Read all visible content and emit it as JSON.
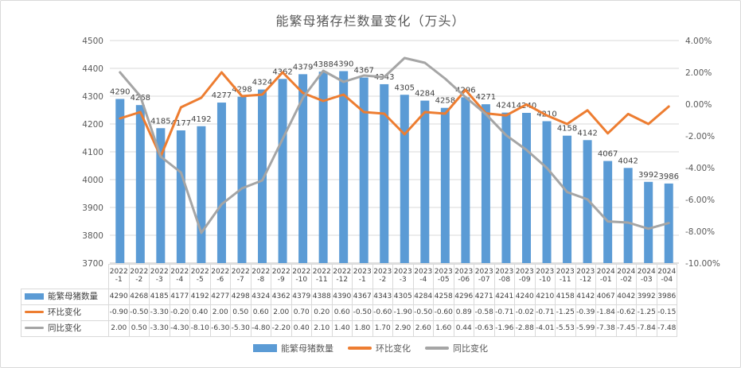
{
  "title": "能繁母猪存栏数量变化（万头）",
  "colors": {
    "bar": "#5B9BD5",
    "mom_line": "#ED7D31",
    "yoy_line": "#A5A5A5",
    "grid": "#D9D9D9",
    "axis_line": "#BFBFBF",
    "axis_text": "#595959",
    "label_text": "#404040",
    "table_border": "#D9D9D9"
  },
  "chart_data": {
    "type": "combo",
    "title": "能繁母猪存栏数量变化（万头）",
    "grid": true,
    "legend_position": "bottom",
    "show_data_table": true,
    "categories": [
      "2022-1",
      "2022-2",
      "2022-3",
      "2022-4",
      "2022-5",
      "2022-6",
      "2022-7",
      "2022-8",
      "2022-9",
      "2022-10",
      "2022-11",
      "2022-12",
      "2023-1",
      "2023-2",
      "2023-3",
      "2023-4",
      "2023-05",
      "2023-06",
      "2023-07",
      "2023-08",
      "2023-09",
      "2023-10",
      "2023-11",
      "2023-12",
      "2024-01",
      "2024-02",
      "2024-03",
      "2024-04"
    ],
    "series": [
      {
        "name": "能繁母猪数量",
        "type": "bar",
        "axis": "left",
        "color": "#5B9BD5",
        "values": [
          "4290",
          "4268",
          "4185",
          "4177",
          "4192",
          "4277",
          "4298",
          "4324",
          "4362",
          "4379",
          "4388",
          "4390",
          "4367",
          "4343",
          "4305",
          "4284",
          "4258",
          "4296",
          "4271",
          "4241",
          "4240",
          "4210",
          "4158",
          "4142",
          "4067",
          "4042",
          "3992",
          "3986"
        ]
      },
      {
        "name": "环比变化",
        "type": "line",
        "axis": "right",
        "color": "#ED7D31",
        "values": [
          "-0.90",
          "-0.50",
          "-3.30",
          "-0.20",
          "0.40",
          "2.00",
          "0.50",
          "0.60",
          "2.00",
          "0.70",
          "0.20",
          "0.60",
          "-0.50",
          "-0.60",
          "-1.90",
          "-0.50",
          "-0.60",
          "0.89",
          "-0.58",
          "-0.71",
          "-0.02",
          "-0.71",
          "-1.25",
          "-0.39",
          "-1.84",
          "-0.62",
          "-1.25",
          "-0.15"
        ]
      },
      {
        "name": "同比变化",
        "type": "line",
        "axis": "right",
        "color": "#A5A5A5",
        "values": [
          "2.00",
          "0.50",
          "-3.30",
          "-4.30",
          "-8.10",
          "-6.30",
          "-5.30",
          "-4.80",
          "-2.20",
          "0.40",
          "2.10",
          "1.40",
          "1.80",
          "1.70",
          "2.90",
          "2.60",
          "1.60",
          "0.44",
          "-0.63",
          "-1.96",
          "-2.88",
          "-4.01",
          "-5.53",
          "-5.99",
          "-7.38",
          "-7.45",
          "-7.84",
          "-7.48"
        ]
      }
    ],
    "left_axis": {
      "min": 3700,
      "max": 4500,
      "ticks": [
        "4500",
        "4400",
        "4300",
        "4200",
        "4100",
        "4000",
        "3900",
        "3800",
        "3700"
      ]
    },
    "right_axis": {
      "min": -10,
      "max": 4,
      "ticks": [
        "4.00%",
        "2.00%",
        "0.00%",
        "-2.00%",
        "-4.00%",
        "-6.00%",
        "-8.00%",
        "-10.00%"
      ]
    }
  }
}
